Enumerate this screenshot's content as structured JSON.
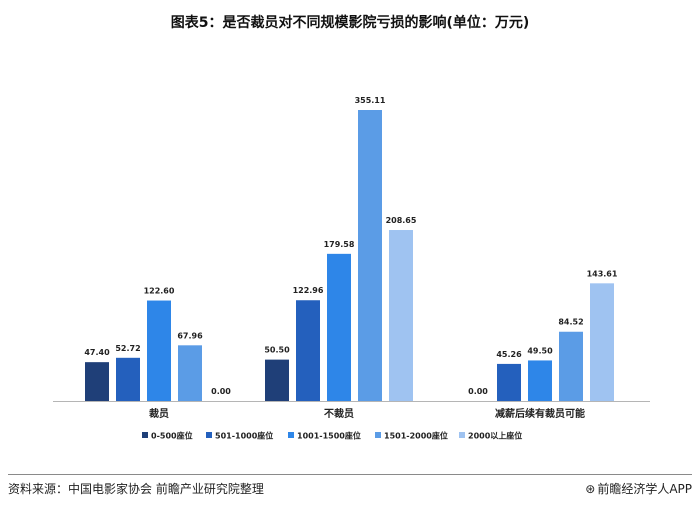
{
  "chart_data": {
    "type": "bar",
    "title": "图表5：是否裁员对不同规模影院亏损的影响(单位：万元)",
    "categories": [
      "裁员",
      "不裁员",
      "减薪后续有裁员可能"
    ],
    "series": [
      {
        "name": "0-500座位",
        "values": [
          47.4,
          50.5,
          0.0
        ],
        "color": "#1f3f78"
      },
      {
        "name": "501-1000座位",
        "values": [
          52.72,
          122.96,
          45.26
        ],
        "color": "#2460bd"
      },
      {
        "name": "1001-1500座位",
        "values": [
          122.6,
          179.58,
          49.5
        ],
        "color": "#2e86e8"
      },
      {
        "name": "1501-2000座位",
        "values": [
          67.96,
          355.11,
          84.52
        ],
        "color": "#5b9ce6"
      },
      {
        "name": "2000以上座位",
        "values": [
          0.0,
          208.65,
          143.61
        ],
        "color": "#9fc3f1"
      }
    ],
    "value_labels": [
      [
        "47.40",
        "52.72",
        "122.60",
        "67.96",
        "0.00"
      ],
      [
        "50.50",
        "122.96",
        "179.58",
        "355.11",
        "208.65"
      ],
      [
        "0.00",
        "45.26",
        "49.50",
        "84.52",
        "143.61"
      ]
    ],
    "ylim": [
      0,
      360
    ],
    "xlabel": "",
    "ylabel": "",
    "grid": false,
    "legend_position": "bottom"
  },
  "footer": {
    "source": "资料来源：中国电影家协会 前瞻产业研究院整理",
    "brand": "前瞻经济学人APP",
    "brand_icon": "brand-logo-icon"
  }
}
